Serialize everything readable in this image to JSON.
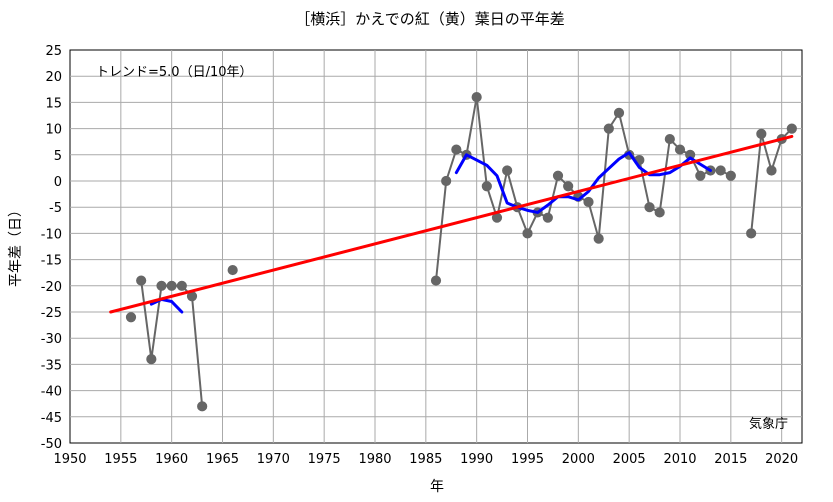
{
  "chart_data": {
    "type": "line",
    "title": "［横浜］かえでの紅（黄）葉日の平年差",
    "xlabel": "年",
    "ylabel": "平年差（日）",
    "xlim": [
      1950,
      2022
    ],
    "ylim": [
      -50,
      25
    ],
    "x_ticks": [
      1950,
      1955,
      1960,
      1965,
      1970,
      1975,
      1980,
      1985,
      1990,
      1995,
      2000,
      2005,
      2010,
      2015,
      2020
    ],
    "y_ticks": [
      -50,
      -45,
      -40,
      -35,
      -30,
      -25,
      -20,
      -15,
      -10,
      -5,
      0,
      5,
      10,
      15,
      20,
      25
    ],
    "grid": true,
    "trend_text": "トレンド=5.0（日/10年）",
    "source_text": "気象庁",
    "colors": {
      "annual": "#666666",
      "moving_average": "#0000ff",
      "trend": "#ff0000",
      "grid": "#aaaaaa"
    },
    "series": [
      {
        "kind": "annual",
        "segments": [
          [
            [
              1956,
              -26
            ]
          ],
          [
            [
              1957,
              -19
            ],
            [
              1958,
              -34
            ],
            [
              1959,
              -20
            ],
            [
              1960,
              -20
            ],
            [
              1961,
              -20
            ],
            [
              1962,
              -22
            ],
            [
              1963,
              -43
            ]
          ],
          [
            [
              1966,
              -17
            ]
          ],
          [
            [
              1986,
              -19
            ],
            [
              1987,
              0
            ],
            [
              1988,
              6
            ],
            [
              1989,
              5
            ],
            [
              1990,
              16
            ],
            [
              1991,
              -1
            ],
            [
              1992,
              -7
            ],
            [
              1993,
              2
            ],
            [
              1994,
              -5
            ],
            [
              1995,
              -10
            ],
            [
              1996,
              -6
            ],
            [
              1997,
              -7
            ],
            [
              1998,
              1
            ],
            [
              1999,
              -1
            ],
            [
              2000,
              -3
            ],
            [
              2001,
              -4
            ],
            [
              2002,
              -11
            ],
            [
              2003,
              10
            ],
            [
              2004,
              13
            ],
            [
              2005,
              5
            ],
            [
              2006,
              4
            ],
            [
              2007,
              -5
            ],
            [
              2008,
              -6
            ],
            [
              2009,
              8
            ],
            [
              2010,
              6
            ],
            [
              2011,
              5
            ],
            [
              2012,
              1
            ],
            [
              2013,
              2
            ],
            [
              2014,
              2
            ],
            [
              2015,
              1
            ]
          ],
          [
            [
              2017,
              -10
            ],
            [
              2018,
              9
            ],
            [
              2019,
              2
            ],
            [
              2020,
              8
            ],
            [
              2021,
              10
            ]
          ]
        ]
      },
      {
        "kind": "moving_average",
        "segments": [
          [
            [
              1958,
              -23.5
            ],
            [
              1959,
              -22.6
            ],
            [
              1960,
              -23
            ],
            [
              1961,
              -25
            ]
          ],
          [
            [
              1988,
              1.6
            ],
            [
              1989,
              5
            ],
            [
              1990,
              4
            ],
            [
              1991,
              3
            ],
            [
              1992,
              1
            ],
            [
              1993,
              -4.2
            ],
            [
              1994,
              -5
            ],
            [
              1995,
              -5.6
            ],
            [
              1996,
              -6
            ],
            [
              1997,
              -4.6
            ],
            [
              1998,
              -3
            ],
            [
              1999,
              -3
            ],
            [
              2000,
              -3.6
            ],
            [
              2001,
              -2
            ],
            [
              2002,
              0.6
            ],
            [
              2003,
              2.4
            ],
            [
              2004,
              4.2
            ],
            [
              2005,
              5.4
            ],
            [
              2006,
              2.6
            ],
            [
              2007,
              1.2
            ],
            [
              2008,
              1.2
            ],
            [
              2009,
              1.6
            ],
            [
              2010,
              2.8
            ],
            [
              2011,
              4.4
            ],
            [
              2012,
              3.2
            ],
            [
              2013,
              2
            ]
          ]
        ]
      },
      {
        "kind": "trend",
        "segments": [
          [
            [
              1954,
              -25
            ],
            [
              2021,
              8.5
            ]
          ]
        ]
      }
    ]
  }
}
